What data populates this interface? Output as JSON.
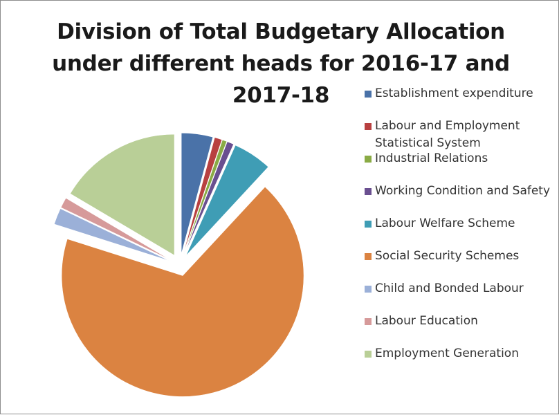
{
  "chart_data": {
    "type": "pie",
    "title": "Division of Total Budgetary Allocation under different heads for 2016-17 and 2017-18",
    "title_lines": [
      "Division of Total Budgetary Allocation",
      "under different heads for 2016-17 and",
      "2017-18"
    ],
    "legend_position": "right",
    "exploded": true,
    "series": [
      {
        "name": "Establishment expenditure",
        "value": 4.2,
        "color": "#4a72a8"
      },
      {
        "name": "Labour and Employment Statistical System",
        "value": 1.0,
        "color": "#b84040"
      },
      {
        "name": "Industrial Relations",
        "value": 0.6,
        "color": "#8aab45"
      },
      {
        "name": "Working Condition and Safety",
        "value": 0.9,
        "color": "#6a4f90"
      },
      {
        "name": "Labour Welfare Scheme",
        "value": 5.2,
        "color": "#3f9db5"
      },
      {
        "name": "Social Security Schemes",
        "value": 68.0,
        "color": "#db8341"
      },
      {
        "name": "Child and Bonded Labour",
        "value": 2.2,
        "color": "#9bb0d8"
      },
      {
        "name": "Labour Education",
        "value": 1.4,
        "color": "#d69a9a"
      },
      {
        "name": "Employment Generation",
        "value": 16.5,
        "color": "#b9cf97"
      }
    ]
  }
}
